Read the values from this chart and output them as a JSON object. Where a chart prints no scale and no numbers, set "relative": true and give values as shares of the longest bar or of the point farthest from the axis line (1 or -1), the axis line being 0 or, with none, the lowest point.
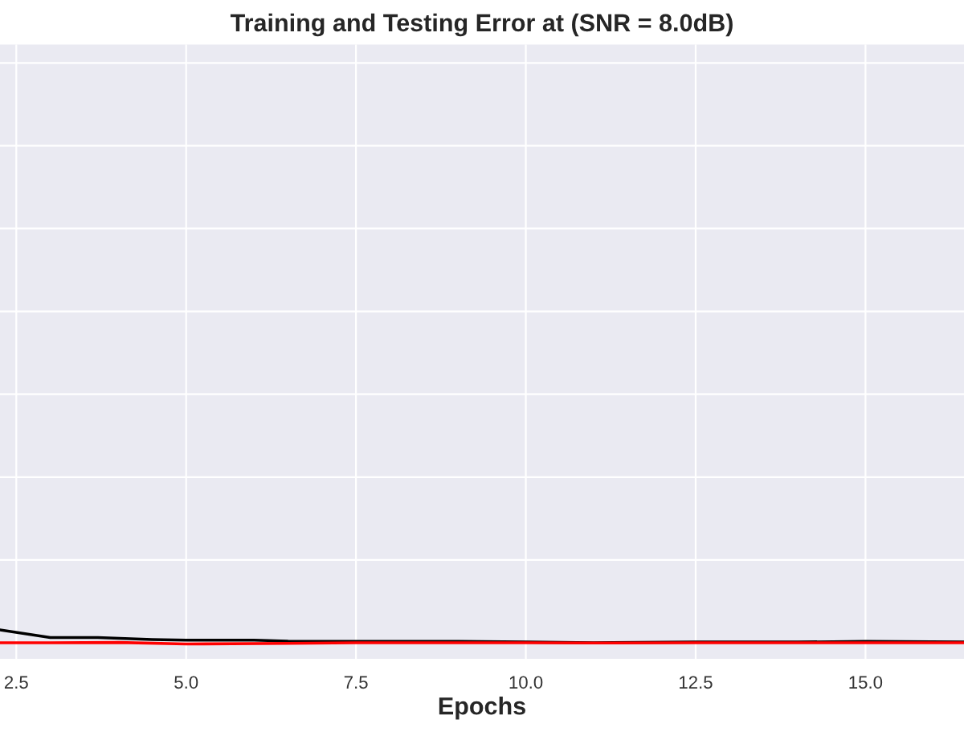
{
  "chart_data": {
    "type": "line",
    "title": "Training and Testing Error at (SNR = 8.0dB)",
    "xlabel": "Epochs",
    "relative": true,
    "grid": true,
    "xlim": [
      2.26,
      16.45
    ],
    "xticks": [
      {
        "value": 2.5,
        "label": "2.5"
      },
      {
        "value": 5,
        "label": "5.0"
      },
      {
        "value": 7.5,
        "label": "7.5"
      },
      {
        "value": 10,
        "label": "10.0"
      },
      {
        "value": 12.5,
        "label": "12.5"
      },
      {
        "value": 15,
        "label": "15.0"
      }
    ],
    "tick_labels": "x",
    "marker": "none",
    "line_style": "solid",
    "series": [
      {
        "color": "#000000",
        "x": [
          2.26,
          3,
          3.7,
          4.5,
          5,
          6,
          6.5,
          7.5,
          9,
          10,
          11,
          12.5,
          14,
          15,
          16.45
        ],
        "values": [
          1.0,
          0.4,
          0.4,
          0.25,
          0.2,
          0.2,
          0.12,
          0.1,
          0.1,
          0.05,
          0,
          0.05,
          0.05,
          0.1,
          0.05
        ]
      },
      {
        "color": "#ff0000",
        "x": [
          2.26,
          3,
          4,
          5,
          6.5,
          7.5,
          10,
          11,
          12.5,
          14,
          16.45
        ],
        "values": [
          0,
          0,
          0.02,
          -0.1,
          -0.05,
          0,
          0,
          -0.02,
          0,
          0,
          0
        ]
      }
    ]
  }
}
